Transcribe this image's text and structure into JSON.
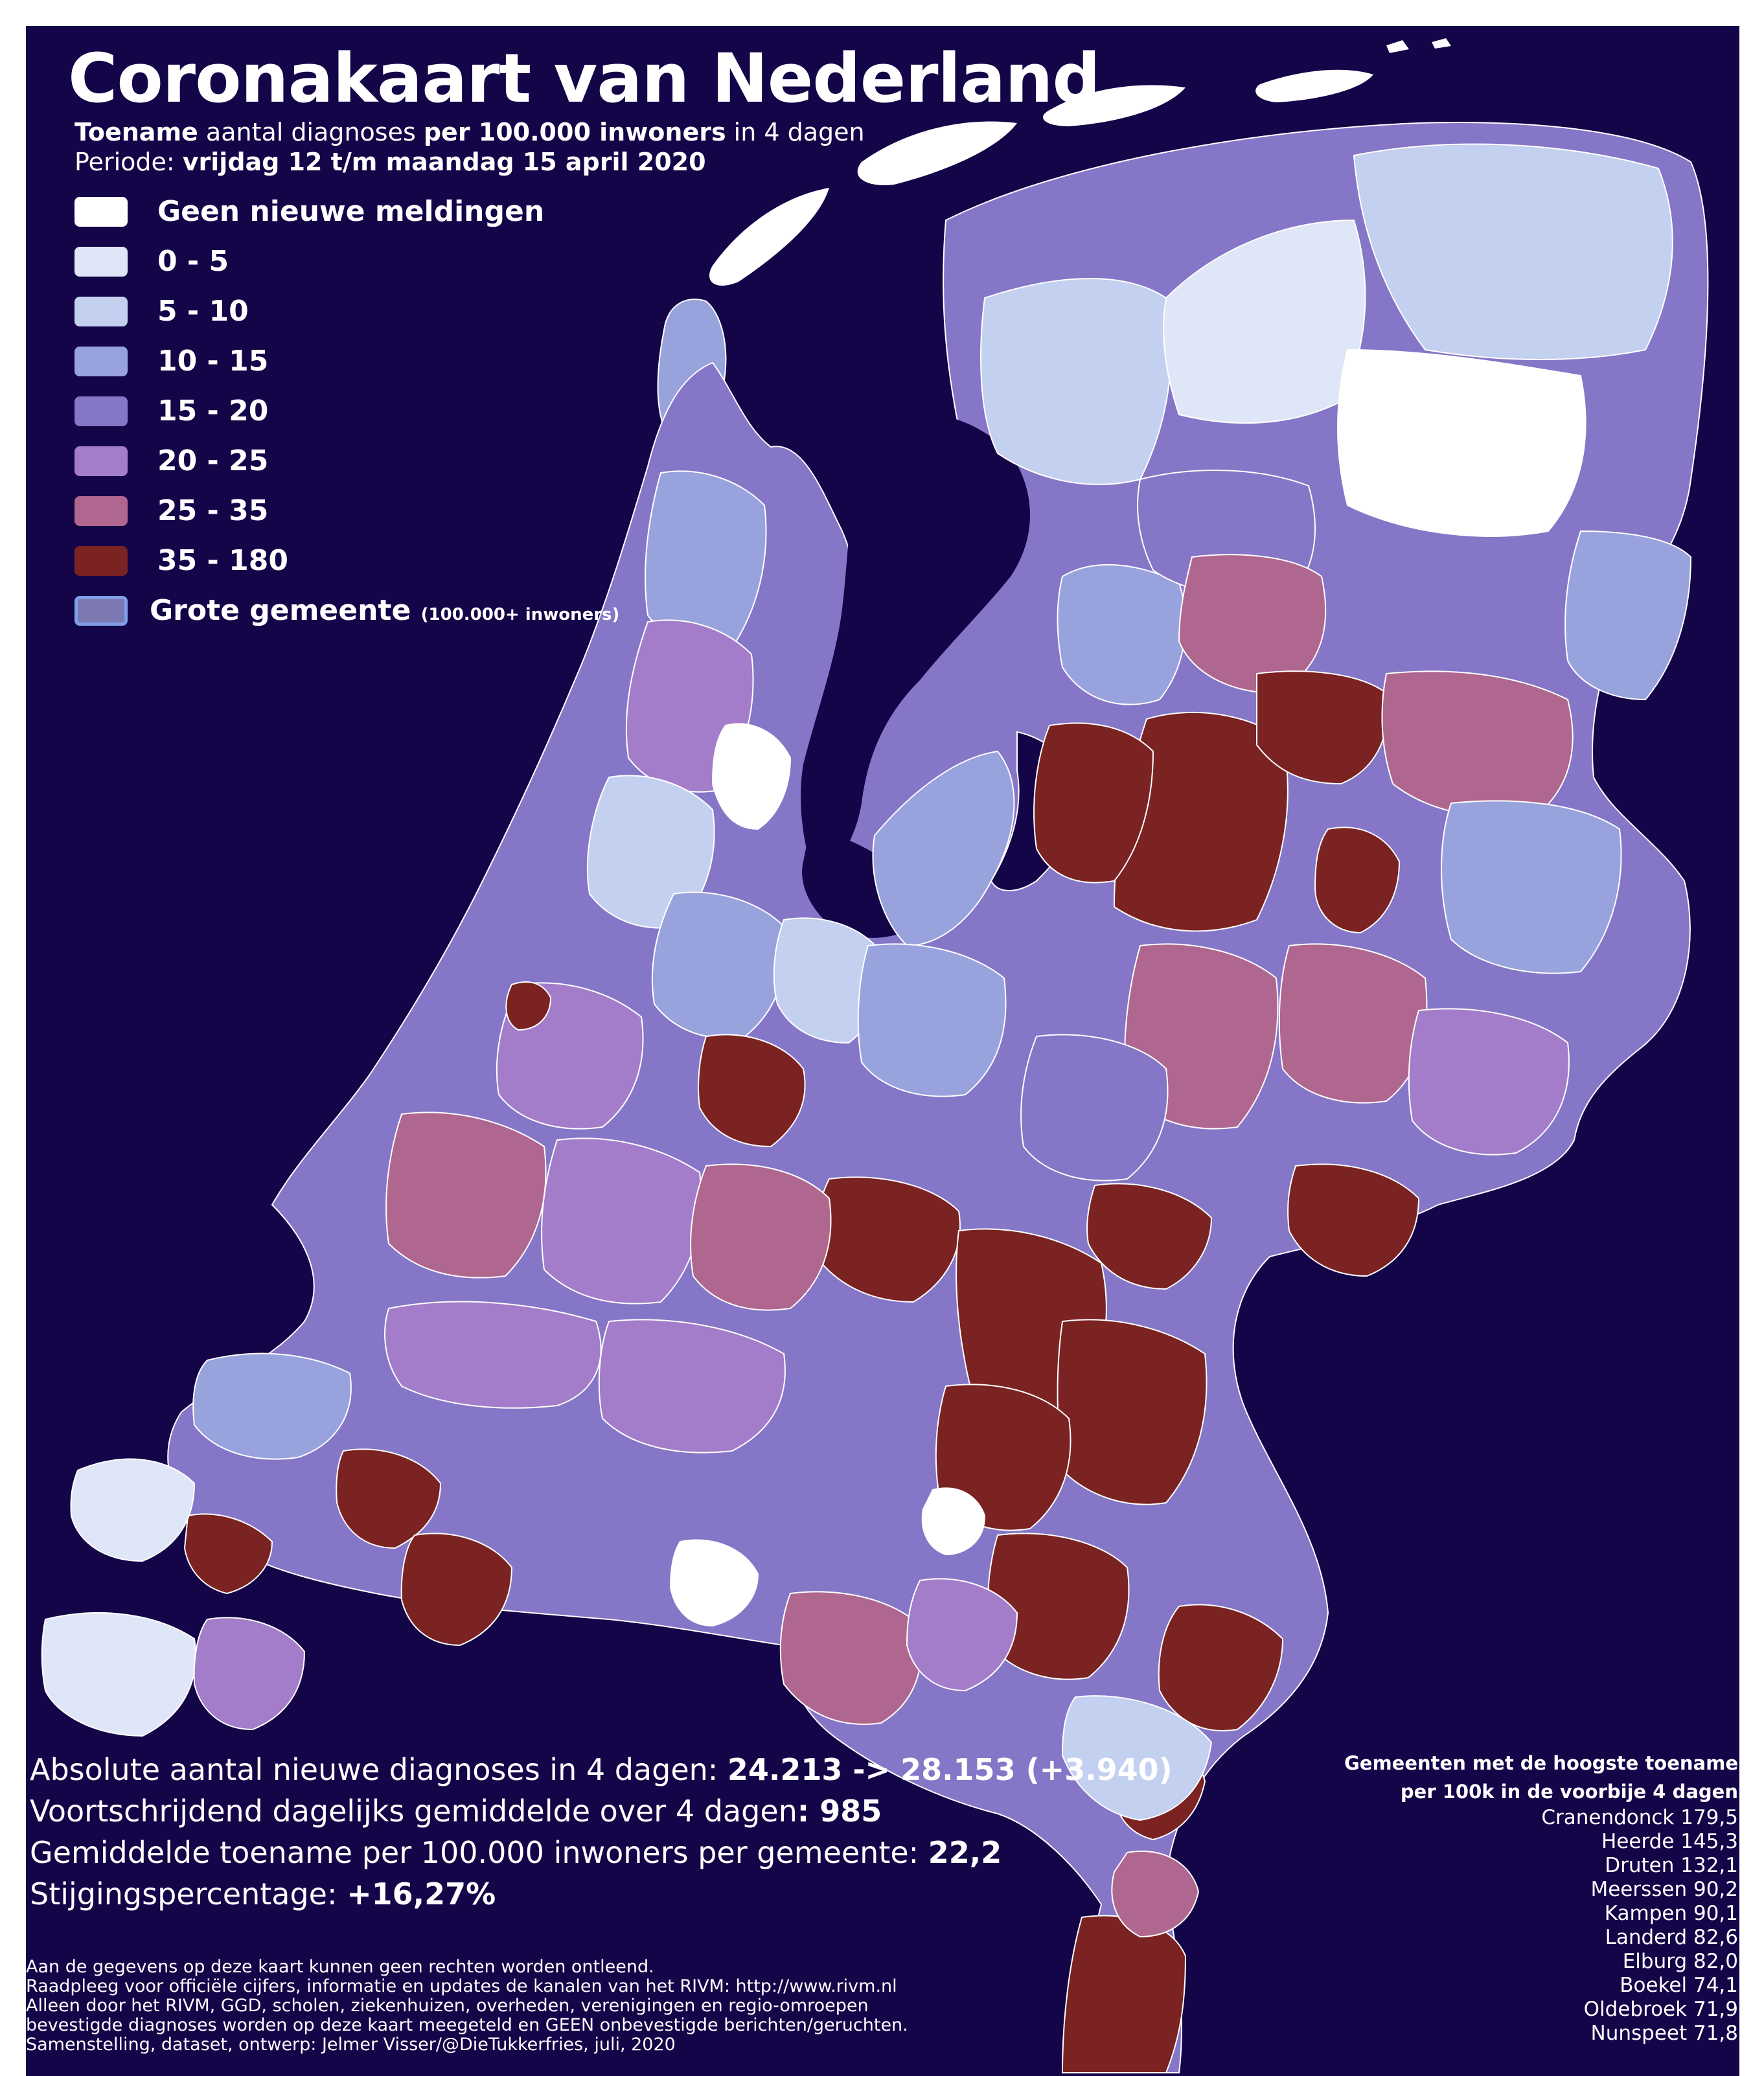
{
  "title": "Coronakaart van Nederland",
  "subtitle": {
    "line1_a": "Toename",
    "line1_b": " aantal diagnoses ",
    "line1_c": "per 100.000 inwoners",
    "line1_d": " in 4 dagen",
    "line2_a": "Periode: ",
    "line2_b": "vrijdag 12 t/m maandag 15 april 2020"
  },
  "colors": {
    "background": "#140448",
    "border": "#ffffff",
    "water_outline": "#ffffff"
  },
  "legend": [
    {
      "label": "Geen nieuwe meldingen",
      "color": "#ffffff"
    },
    {
      "label": "0 - 5",
      "color": "#dfe6f7"
    },
    {
      "label": "5 -  10",
      "color": "#c3d0ef"
    },
    {
      "label": "10 -  15",
      "color": "#98a3de"
    },
    {
      "label": "15 -  20",
      "color": "#8576c7"
    },
    {
      "label": "20 -  25",
      "color": "#a47dca"
    },
    {
      "label": "25 -  35",
      "color": "#b0678f"
    },
    {
      "label": "35 -  180",
      "color": "#7a2322"
    }
  ],
  "legend_large": {
    "label": "Grote gemeente ",
    "sub": "(100.000+ inwoners)",
    "color": "#7c79b2",
    "outline": "#7fa0e8"
  },
  "stats": {
    "s1_a": "Absolute aantal nieuwe diagnoses in 4 dagen: ",
    "s1_b": "24.213 -> 28.153 (+3.940)",
    "s2_a": "Voortschrijdend dagelijks gemiddelde over 4 dagen",
    "s2_b": ": 985",
    "s3_a": "Gemiddelde toename per 100.000 inwoners per gemeente: ",
    "s3_b": "22,2",
    "s4_a": "Stijgingspercentage: ",
    "s4_b": "+16,27%"
  },
  "top_list": {
    "heading1": "Gemeenten met de hoogste toename",
    "heading2": "per 100k in de voorbije 4 dagen",
    "items": [
      "Cranendonck 179,5",
      "Heerde 145,3",
      "Druten 132,1",
      "Meerssen 90,2",
      "Kampen 90,1",
      "Landerd 82,6",
      "Elburg 82,0",
      "Boekel 74,1",
      "Oldebroek 71,9",
      "Nunspeet 71,8"
    ]
  },
  "disclaimer": [
    "Aan de gegevens op deze kaart kunnen geen rechten worden ontleend.",
    "Raadpleeg voor officiële cijfers, informatie en updates de kanalen van het RIVM: http://www.rivm.nl",
    "Alleen door het RIVM, GGD, scholen, ziekenhuizen, overheden, verenigingen en regio-omroepen",
    "bevestigde diagnoses worden op deze kaart meegeteld en GEEN onbevestigde berichten/geruchten.",
    "Samenstelling, dataset, ontwerp: Jelmer Visser/@DieTukkerfries, juli, 2020"
  ]
}
